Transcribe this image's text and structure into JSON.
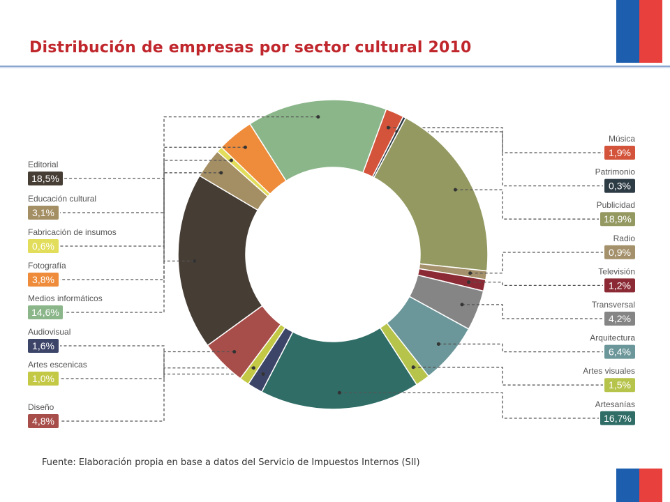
{
  "title": "Distribución de empresas por sector cultural 2010",
  "source": "Fuente: Elaboración propia en base a datos del Servicio de Impuestos Internos (SII)",
  "colors": {
    "title": "#c0272d",
    "flag_blue": "#1d5fae",
    "flag_red": "#e8403d"
  },
  "chart_data": {
    "type": "pie",
    "variant": "donut",
    "unit": "%",
    "slices": [
      {
        "name": "Editorial",
        "value": 18.5,
        "label": "18,5%",
        "color": "#463d35"
      },
      {
        "name": "Educación cultural",
        "value": 3.1,
        "label": "3,1%",
        "color": "#a48e63"
      },
      {
        "name": "Fabricación de insumos",
        "value": 0.6,
        "label": "0,6%",
        "color": "#e2dd5b"
      },
      {
        "name": "Fotografía",
        "value": 3.8,
        "label": "3,8%",
        "color": "#ee8c3b"
      },
      {
        "name": "Medios informáticos",
        "value": 14.6,
        "label": "14,6%",
        "color": "#8bb68a"
      },
      {
        "name": "Música",
        "value": 1.9,
        "label": "1,9%",
        "color": "#d4533b"
      },
      {
        "name": "Patrimonio",
        "value": 0.3,
        "label": "0,3%",
        "color": "#2d3b45"
      },
      {
        "name": "Publicidad",
        "value": 18.9,
        "label": "18,9%",
        "color": "#949961"
      },
      {
        "name": "Radio",
        "value": 0.9,
        "label": "0,9%",
        "color": "#a4916b"
      },
      {
        "name": "Televisión",
        "value": 1.2,
        "label": "1,2%",
        "color": "#8b2a34"
      },
      {
        "name": "Transversal",
        "value": 4.2,
        "label": "4,2%",
        "color": "#858585"
      },
      {
        "name": "Arquitectura",
        "value": 6.4,
        "label": "6,4%",
        "color": "#6c979a"
      },
      {
        "name": "Artes visuales",
        "value": 1.5,
        "label": "1,5%",
        "color": "#b7c44b"
      },
      {
        "name": "Artesanías",
        "value": 16.7,
        "label": "16,7%",
        "color": "#2f6d66"
      },
      {
        "name": "Audiovisual",
        "value": 1.6,
        "label": "1,6%",
        "color": "#3c4468"
      },
      {
        "name": "Artes escenicas",
        "value": 1.0,
        "label": "1,0%",
        "color": "#c3c845"
      },
      {
        "name": "Diseño",
        "value": 4.8,
        "label": "4,8%",
        "color": "#a84e4a"
      }
    ]
  }
}
